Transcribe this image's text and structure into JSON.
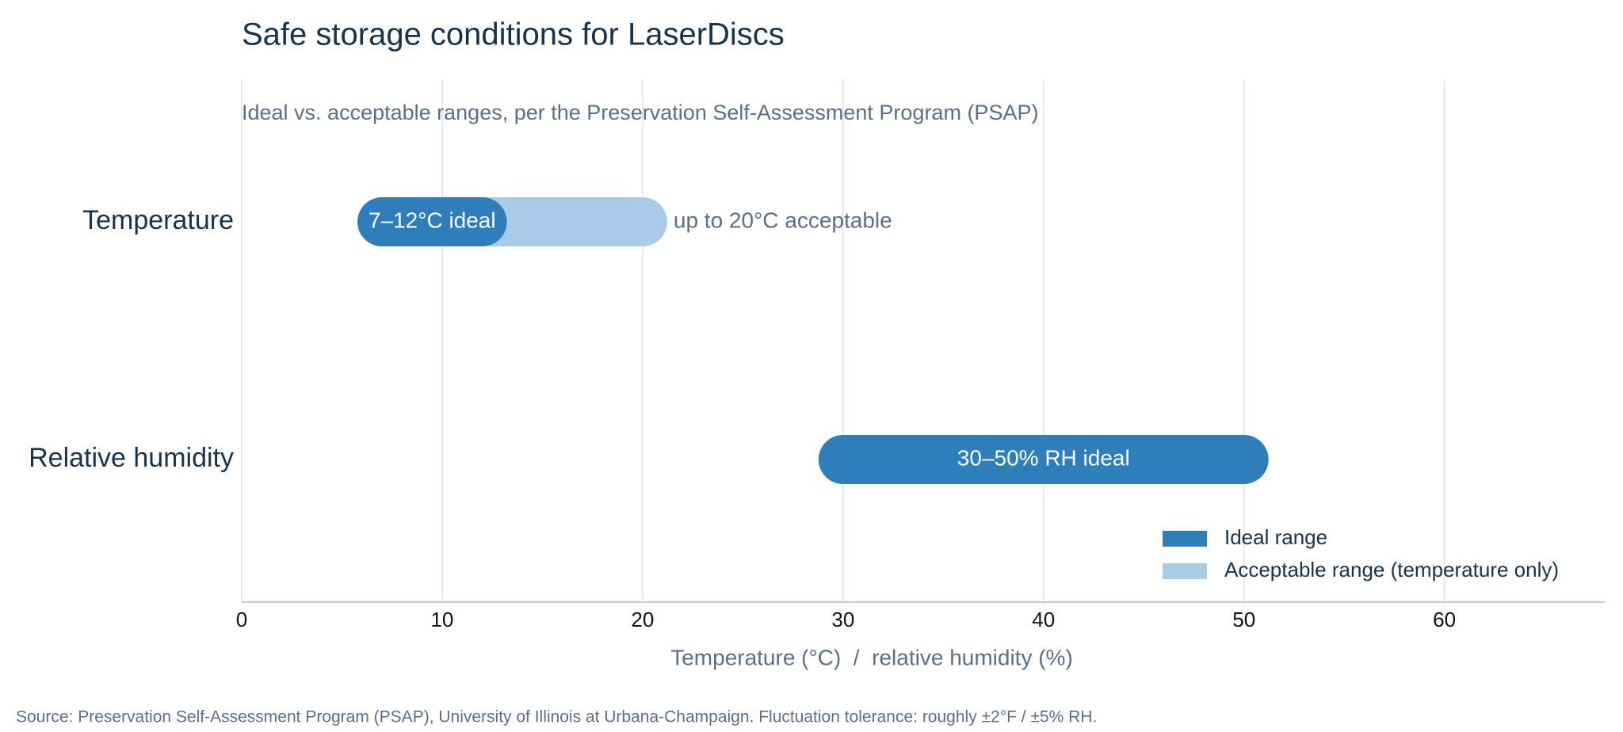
{
  "chart_data": {
    "type": "bar",
    "orientation": "horizontal",
    "chart_style": "range (floating) bars with rounded ends",
    "title": "Safe storage conditions for LaserDiscs",
    "subtitle": "Ideal vs. acceptable ranges, per the Preservation Self-Assessment Program (PSAP)",
    "xlabel": "Temperature (°C)  /  relative humidity (%)",
    "ylabel": "",
    "xlim": [
      0,
      68
    ],
    "x_ticks": [
      0,
      10,
      20,
      30,
      40,
      50,
      60
    ],
    "grid": true,
    "legend_position": "bottom-right",
    "categories": [
      "Temperature",
      "Relative humidity"
    ],
    "series": [
      {
        "name": "Ideal range",
        "color": "#2e7ebb",
        "ranges": [
          {
            "category": "Temperature",
            "start": 7,
            "end": 12,
            "label": "7–12°C ideal",
            "label_position": "inside"
          },
          {
            "category": "Relative humidity",
            "start": 30,
            "end": 50,
            "label": "30–50% RH ideal",
            "label_position": "inside"
          }
        ]
      },
      {
        "name": "Acceptable range (temperature only)",
        "color": "#a9cce6",
        "ranges": [
          {
            "category": "Temperature",
            "start": 7,
            "end": 20,
            "label": "up to 20°C acceptable",
            "label_position": "outside"
          }
        ]
      }
    ],
    "source": "Source: Preservation Self-Assessment Program (PSAP), University of Illinois at Urbana-Champaign. Fluctuation tolerance: roughly ±2°F / ±5% RH."
  },
  "colors": {
    "title": "#17344f",
    "muted_text": "#5b7088",
    "grid": "#e4e9f1",
    "axis": "#c4ccd8",
    "tick_label": "#111111",
    "inside_label": "#ffffff"
  }
}
